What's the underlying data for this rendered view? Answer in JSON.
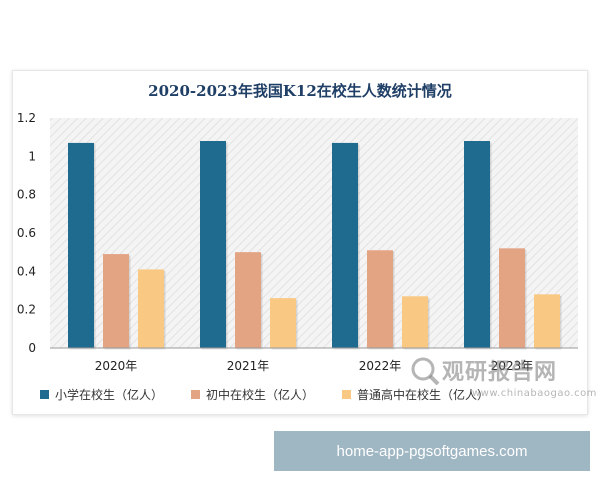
{
  "chart_data": {
    "type": "bar",
    "title": "2020-2023年我国K12在校生人数统计情况",
    "categories": [
      "2020年",
      "2021年",
      "2022年",
      "2023年"
    ],
    "series": [
      {
        "name": "小学在校生（亿人）",
        "color": "#1f6a8f",
        "values": [
          1.07,
          1.08,
          1.07,
          1.08
        ]
      },
      {
        "name": "初中在校生（亿人）",
        "color": "#e3a484",
        "values": [
          0.49,
          0.5,
          0.51,
          0.52
        ]
      },
      {
        "name": "普通高中在校生（亿人）",
        "color": "#f9c984",
        "values": [
          0.41,
          0.26,
          0.27,
          0.28
        ]
      }
    ],
    "yticks": [
      "0",
      "0.2",
      "0.4",
      "0.6",
      "0.8",
      "1",
      "1.2"
    ],
    "ylim": [
      0,
      1.2
    ],
    "grid": false,
    "legend": "bottom"
  },
  "watermark": {
    "cn": "观研报告网",
    "en": "www.chinabaogao.com"
  },
  "banner": {
    "text": "home-app-pgsoftgames.com"
  }
}
